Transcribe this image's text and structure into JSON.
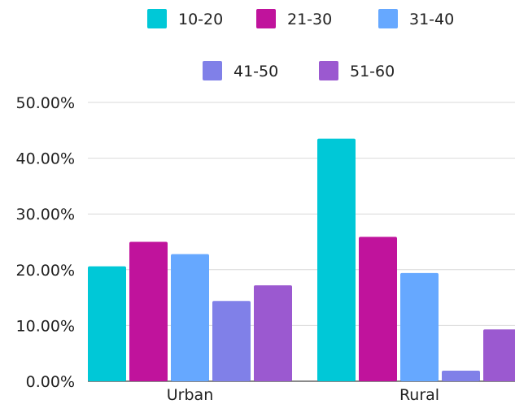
{
  "chart_data": {
    "type": "bar",
    "categories": [
      "Urban",
      "Rural"
    ],
    "series": [
      {
        "name": "10-20",
        "color": "#00C8D7",
        "values": [
          20.6,
          43.5
        ]
      },
      {
        "name": "21-30",
        "color": "#C0139C",
        "values": [
          25.0,
          25.9
        ]
      },
      {
        "name": "31-40",
        "color": "#66A8FF",
        "values": [
          22.8,
          19.4
        ]
      },
      {
        "name": "41-50",
        "color": "#8080E8",
        "values": [
          14.4,
          1.9
        ]
      },
      {
        "name": "51-60",
        "color": "#9B59D0",
        "values": [
          17.2,
          9.3
        ]
      }
    ],
    "y_ticks": [
      "0.00%",
      "10.00%",
      "20.00%",
      "30.00%",
      "40.00%",
      "50.00%"
    ],
    "ylim": [
      0,
      50
    ],
    "grid": true,
    "legend_position": "top"
  }
}
